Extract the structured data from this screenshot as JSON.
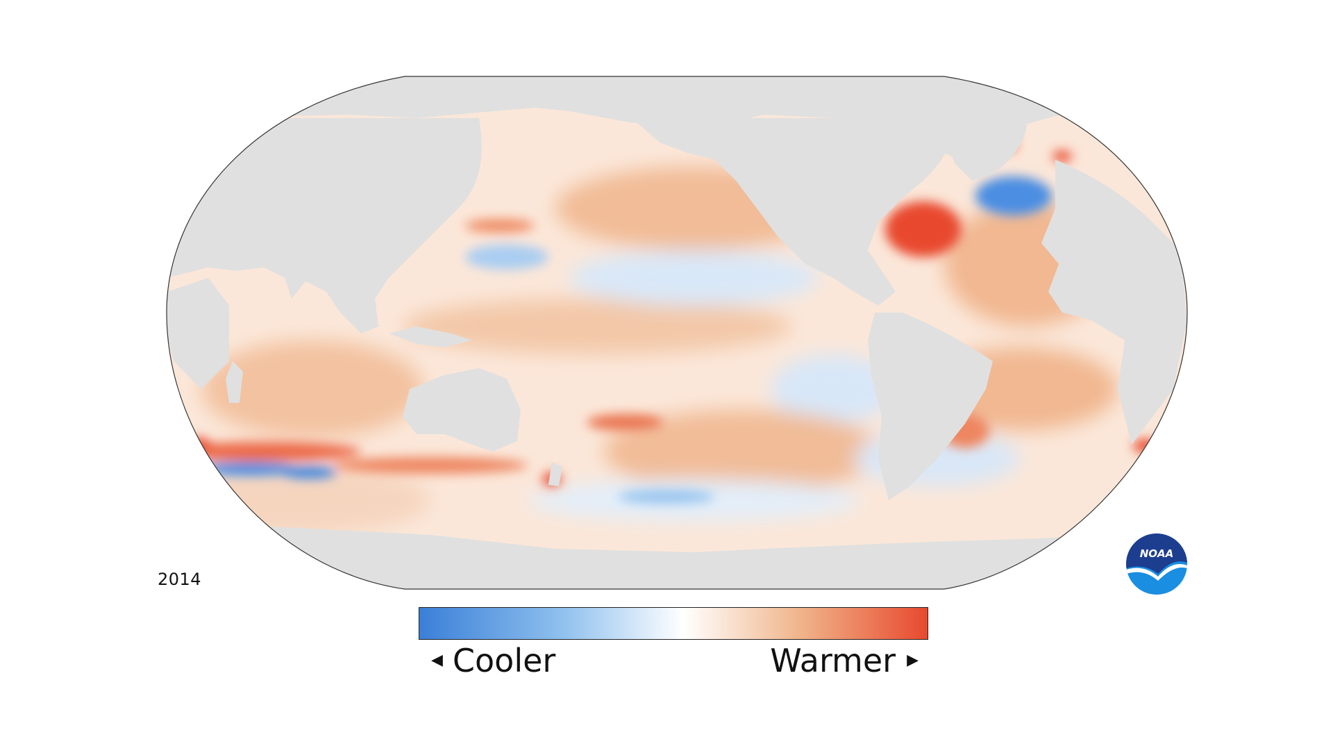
{
  "year": "2014",
  "legend": {
    "low_label": "Cooler",
    "high_label": "Warmer",
    "colors": [
      "#3a7fd8",
      "#8fc0ee",
      "#ffffff",
      "#f0b48a",
      "#e8492e"
    ]
  },
  "logo": {
    "text": "NOAA",
    "icon": "noaa-logo-icon",
    "color_top": "#1d3d8f",
    "color_bottom": "#1a8ee0"
  },
  "map": {
    "projection": "robinson",
    "land_color": "#e0e0e0",
    "ocean_base_color": "#fbe9dd"
  }
}
